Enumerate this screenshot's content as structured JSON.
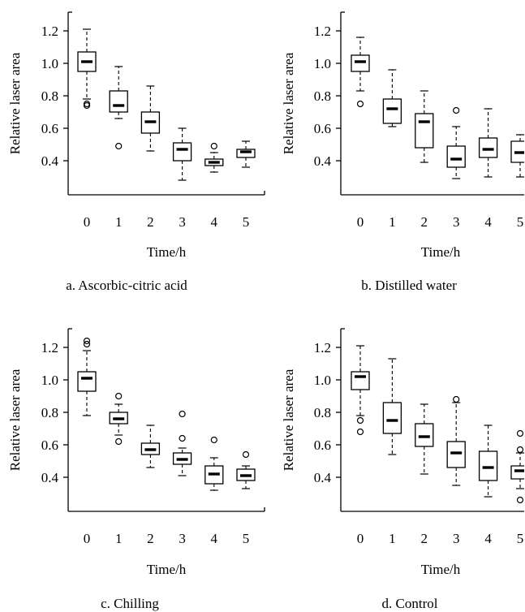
{
  "chart_data": [
    {
      "type": "box",
      "caption": "a. Ascorbic-citric acid",
      "xlabel": "Time/h",
      "ylabel": "Relative laser area",
      "categories": [
        "0",
        "1",
        "2",
        "3",
        "4",
        "5"
      ],
      "yticks": [
        "0.4",
        "0.6",
        "0.8",
        "1.0",
        "1.2"
      ],
      "ylim": [
        0.19,
        1.315
      ],
      "grid": false,
      "legend": "none",
      "boxes": [
        {
          "whisker_low": 0.78,
          "q1": 0.95,
          "median": 1.01,
          "q3": 1.07,
          "whisker_high": 1.21,
          "outliers": [
            0.74,
            0.75
          ]
        },
        {
          "whisker_low": 0.66,
          "q1": 0.7,
          "median": 0.74,
          "q3": 0.83,
          "whisker_high": 0.98,
          "outliers": [
            0.49
          ]
        },
        {
          "whisker_low": 0.46,
          "q1": 0.57,
          "median": 0.64,
          "q3": 0.7,
          "whisker_high": 0.86,
          "outliers": []
        },
        {
          "whisker_low": 0.28,
          "q1": 0.4,
          "median": 0.47,
          "q3": 0.51,
          "whisker_high": 0.6,
          "outliers": []
        },
        {
          "whisker_low": 0.33,
          "q1": 0.37,
          "median": 0.39,
          "q3": 0.41,
          "whisker_high": 0.45,
          "outliers": [
            0.49
          ]
        },
        {
          "whisker_low": 0.36,
          "q1": 0.42,
          "median": 0.455,
          "q3": 0.47,
          "whisker_high": 0.52,
          "outliers": []
        }
      ]
    },
    {
      "type": "box",
      "caption": "b. Distilled water",
      "xlabel": "Time/h",
      "ylabel": "Relative laser area",
      "categories": [
        "0",
        "1",
        "2",
        "3",
        "4",
        "5"
      ],
      "yticks": [
        "0.4",
        "0.6",
        "0.8",
        "1.0",
        "1.2"
      ],
      "ylim": [
        0.19,
        1.315
      ],
      "grid": false,
      "legend": "none",
      "boxes": [
        {
          "whisker_low": 0.83,
          "q1": 0.95,
          "median": 1.01,
          "q3": 1.05,
          "whisker_high": 1.16,
          "outliers": [
            0.75
          ]
        },
        {
          "whisker_low": 0.61,
          "q1": 0.63,
          "median": 0.72,
          "q3": 0.78,
          "whisker_high": 0.96,
          "outliers": []
        },
        {
          "whisker_low": 0.39,
          "q1": 0.48,
          "median": 0.64,
          "q3": 0.69,
          "whisker_high": 0.83,
          "outliers": []
        },
        {
          "whisker_low": 0.29,
          "q1": 0.36,
          "median": 0.41,
          "q3": 0.49,
          "whisker_high": 0.61,
          "outliers": [
            0.71
          ]
        },
        {
          "whisker_low": 0.3,
          "q1": 0.42,
          "median": 0.47,
          "q3": 0.54,
          "whisker_high": 0.72,
          "outliers": []
        },
        {
          "whisker_low": 0.3,
          "q1": 0.39,
          "median": 0.45,
          "q3": 0.52,
          "whisker_high": 0.56,
          "outliers": []
        }
      ]
    },
    {
      "type": "box",
      "caption": "c. Chilling",
      "xlabel": "Time/h",
      "ylabel": "Relative laser area",
      "categories": [
        "0",
        "1",
        "2",
        "3",
        "4",
        "5"
      ],
      "yticks": [
        "0.4",
        "0.6",
        "0.8",
        "1.0",
        "1.2"
      ],
      "ylim": [
        0.19,
        1.315
      ],
      "grid": false,
      "legend": "none",
      "boxes": [
        {
          "whisker_low": 0.78,
          "q1": 0.93,
          "median": 1.01,
          "q3": 1.05,
          "whisker_high": 1.18,
          "outliers": [
            1.22,
            1.24
          ]
        },
        {
          "whisker_low": 0.66,
          "q1": 0.73,
          "median": 0.76,
          "q3": 0.8,
          "whisker_high": 0.85,
          "outliers": [
            0.9,
            0.62
          ]
        },
        {
          "whisker_low": 0.46,
          "q1": 0.54,
          "median": 0.57,
          "q3": 0.61,
          "whisker_high": 0.72,
          "outliers": []
        },
        {
          "whisker_low": 0.41,
          "q1": 0.48,
          "median": 0.51,
          "q3": 0.55,
          "whisker_high": 0.58,
          "outliers": [
            0.79,
            0.64
          ]
        },
        {
          "whisker_low": 0.32,
          "q1": 0.36,
          "median": 0.42,
          "q3": 0.47,
          "whisker_high": 0.52,
          "outliers": [
            0.63
          ]
        },
        {
          "whisker_low": 0.33,
          "q1": 0.38,
          "median": 0.41,
          "q3": 0.45,
          "whisker_high": 0.47,
          "outliers": [
            0.54
          ]
        }
      ]
    },
    {
      "type": "box",
      "caption": "d. Control",
      "xlabel": "Time/h",
      "ylabel": "Relative laser area",
      "categories": [
        "0",
        "1",
        "2",
        "3",
        "4",
        "5"
      ],
      "yticks": [
        "0.4",
        "0.6",
        "0.8",
        "1.0",
        "1.2"
      ],
      "ylim": [
        0.19,
        1.315
      ],
      "grid": false,
      "legend": "none",
      "boxes": [
        {
          "whisker_low": 0.78,
          "q1": 0.94,
          "median": 1.02,
          "q3": 1.05,
          "whisker_high": 1.21,
          "outliers": [
            0.75,
            0.68
          ]
        },
        {
          "whisker_low": 0.54,
          "q1": 0.67,
          "median": 0.75,
          "q3": 0.86,
          "whisker_high": 1.13,
          "outliers": []
        },
        {
          "whisker_low": 0.42,
          "q1": 0.59,
          "median": 0.65,
          "q3": 0.73,
          "whisker_high": 0.85,
          "outliers": []
        },
        {
          "whisker_low": 0.35,
          "q1": 0.46,
          "median": 0.55,
          "q3": 0.62,
          "whisker_high": 0.86,
          "outliers": [
            0.88
          ]
        },
        {
          "whisker_low": 0.28,
          "q1": 0.38,
          "median": 0.46,
          "q3": 0.56,
          "whisker_high": 0.72,
          "outliers": []
        },
        {
          "whisker_low": 0.33,
          "q1": 0.39,
          "median": 0.44,
          "q3": 0.47,
          "whisker_high": 0.55,
          "outliers": [
            0.67,
            0.57,
            0.26
          ]
        }
      ]
    }
  ]
}
